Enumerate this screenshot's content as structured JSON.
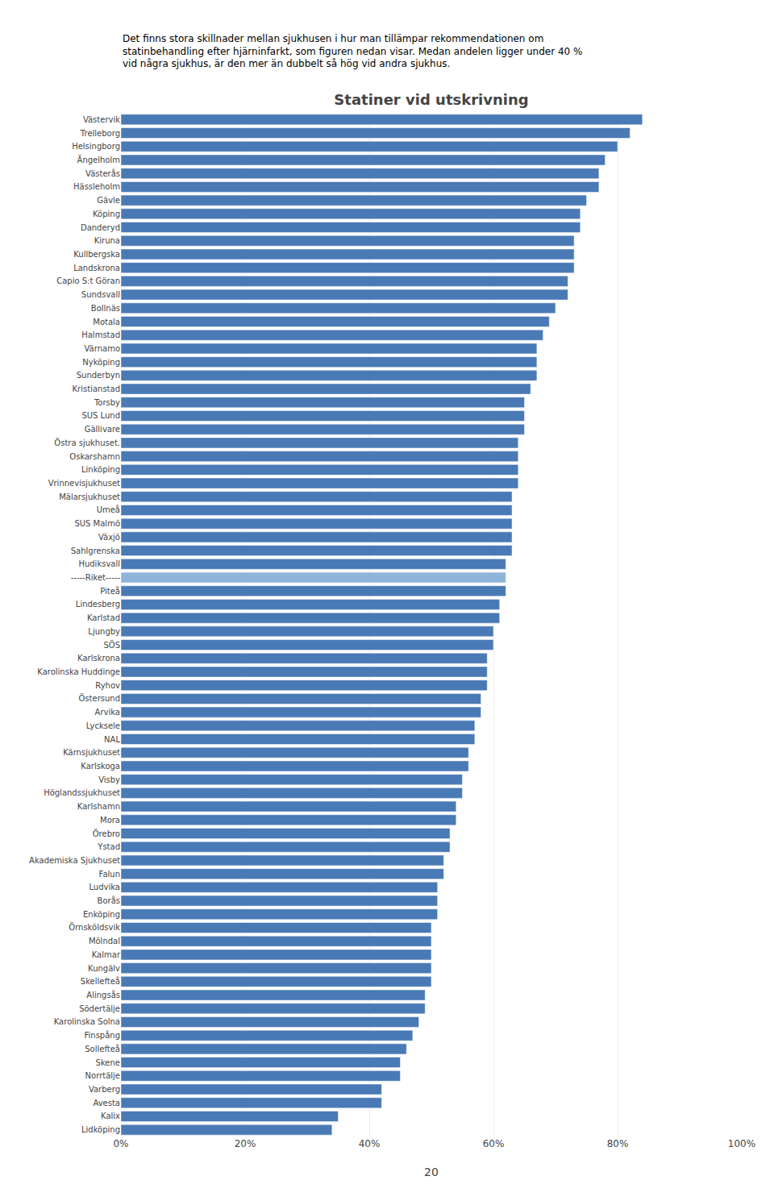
{
  "chart_data": {
    "type": "bar",
    "orientation": "horizontal",
    "title": "Statiner vid utskrivning",
    "subtitle": [
      "Det finns stora skillnader mellan sjukhusen i hur man tillämpar rekommendationen om",
      "statinbehandling efter hjärninfarkt, som figuren nedan visar. Medan andelen ligger under 40 %",
      "vid några sjukhus, är den mer än dubbelt så hög vid andra sjukhus."
    ],
    "annotations": [
      "20"
    ],
    "categories": [
      "Västervik",
      "Trelleborg",
      "Helsingborg",
      "Ängelholm",
      "Västerås",
      "Hässleholm",
      "Gävle",
      "Köping",
      "Danderyd",
      "Kiruna",
      "Kullbergska",
      "Landskrona",
      "Capio S:t Göran",
      "Sundsvall",
      "Bollnäs",
      "Motala",
      "Halmstad",
      "Värnamo",
      "Nyköping",
      "Sunderbyn",
      "Kristianstad",
      "Torsby",
      "SUS Lund",
      "Gällivare",
      "Östra sjukhuset.",
      "Oskarshamn",
      "Linköping",
      "Vrinnevisjukhuset",
      "Mälarsjukhuset",
      "Umeå",
      "SUS Malmö",
      "Växjö",
      "Sahlgrenska",
      "Hudiksvall",
      "-----Riket-----",
      "Piteå",
      "Lindesberg",
      "Karlstad",
      "Ljungby",
      "SÖS",
      "Karlskrona",
      "Karolinska Huddinge",
      "Ryhov",
      "Östersund",
      "Arvika",
      "Lycksele",
      "NAL",
      "Kärnsjukhuset",
      "Karlskoga",
      "Visby",
      "Höglandssjukhuset",
      "Karlshamn",
      "Mora",
      "Örebro",
      "Ystad",
      "Akademiska Sjukhuset",
      "Falun",
      "Ludvika",
      "Borås",
      "Enköping",
      "Örnsköldsvik",
      "Mölndal",
      "Kalmar",
      "Kungälv",
      "Skellefteå",
      "Alingsås",
      "Södertälje",
      "Karolinska Solna",
      "Finspång",
      "Sollefteå",
      "Skene",
      "Norrtälje",
      "Varberg",
      "Avesta",
      "Kalix",
      "Lidköping"
    ],
    "values": [
      84,
      82,
      80,
      78,
      77,
      77,
      75,
      74,
      74,
      73,
      73,
      73,
      72,
      72,
      70,
      69,
      68,
      67,
      67,
      67,
      66,
      65,
      65,
      65,
      64,
      64,
      64,
      64,
      63,
      63,
      63,
      63,
      63,
      62,
      62,
      62,
      61,
      61,
      60,
      60,
      59,
      59,
      59,
      58,
      58,
      57,
      57,
      56,
      56,
      55,
      55,
      54,
      54,
      53,
      53,
      52,
      52,
      51,
      51,
      51,
      50,
      50,
      50,
      50,
      50,
      49,
      49,
      48,
      47,
      46,
      45,
      45,
      42,
      42,
      35,
      34
    ],
    "colors": [
      "#4a7ab5",
      "#4a7ab5",
      "#4a7ab5",
      "#4a7ab5",
      "#4a7ab5",
      "#4a7ab5",
      "#4a7ab5",
      "#4a7ab5",
      "#4a7ab5",
      "#4a7ab5",
      "#4a7ab5",
      "#4a7ab5",
      "#4a7ab5",
      "#4a7ab5",
      "#4a7ab5",
      "#4a7ab5",
      "#4a7ab5",
      "#4a7ab5",
      "#4a7ab5",
      "#4a7ab5",
      "#4a7ab5",
      "#4a7ab5",
      "#4a7ab5",
      "#4a7ab5",
      "#4a7ab5",
      "#4a7ab5",
      "#4a7ab5",
      "#4a7ab5",
      "#4a7ab5",
      "#4a7ab5",
      "#4a7ab5",
      "#4a7ab5",
      "#4a7ab5",
      "#4a7ab5",
      "#8fb4d9",
      "#4a7ab5",
      "#4a7ab5",
      "#4a7ab5",
      "#4a7ab5",
      "#4a7ab5",
      "#4a7ab5",
      "#4a7ab5",
      "#4a7ab5",
      "#4a7ab5",
      "#4a7ab5",
      "#4a7ab5",
      "#4a7ab5",
      "#4a7ab5",
      "#4a7ab5",
      "#4a7ab5",
      "#4a7ab5",
      "#4a7ab5",
      "#4a7ab5",
      "#4a7ab5",
      "#4a7ab5",
      "#4a7ab5",
      "#4a7ab5",
      "#4a7ab5",
      "#4a7ab5",
      "#4a7ab5",
      "#4a7ab5",
      "#4a7ab5",
      "#4a7ab5",
      "#4a7ab5",
      "#4a7ab5",
      "#4a7ab5",
      "#4a7ab5",
      "#4a7ab5",
      "#4a7ab5",
      "#4a7ab5",
      "#4a7ab5",
      "#4a7ab5",
      "#4a7ab5",
      "#4a7ab5",
      "#4a7ab5",
      "#4a7ab5"
    ],
    "xlim": [
      0,
      100
    ],
    "xticks": [
      {
        "value": 0,
        "label": "0%"
      },
      {
        "value": 20,
        "label": "20%"
      },
      {
        "value": 40,
        "label": "40%"
      },
      {
        "value": 60,
        "label": "60%"
      },
      {
        "value": 80,
        "label": "80%"
      },
      {
        "value": 100,
        "label": "100%"
      }
    ],
    "grid": true
  }
}
